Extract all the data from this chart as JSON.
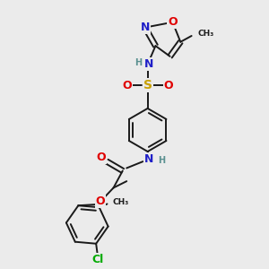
{
  "bg_color": "#ebebeb",
  "bond_color": "#1a1a1a",
  "colors": {
    "N": "#2020c8",
    "O": "#e00000",
    "S": "#c8a000",
    "Cl": "#00aa00",
    "C": "#1a1a1a",
    "H": "#5a9090"
  },
  "font_size": 8.5,
  "lw": 1.4
}
